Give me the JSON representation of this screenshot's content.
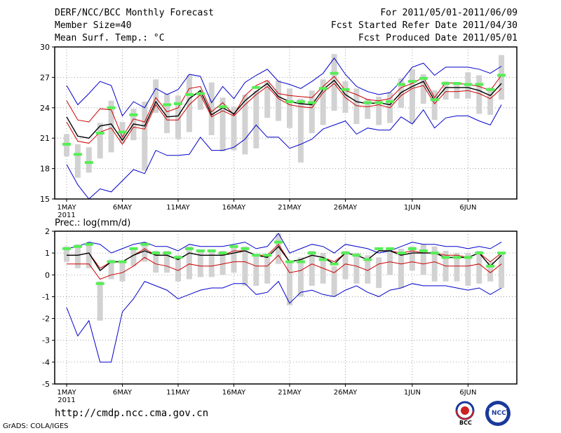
{
  "header": {
    "title": "DERF/NCC/BCC Monthly Forecast",
    "member_size": "Member Size=40",
    "variable": "Mean Surf. Temp.: °C",
    "fcst_period": "For 2011/05/01-2011/06/09",
    "fcst_started": "Fcst Started Refer Date 2011/04/30",
    "fcst_produced": "Fcst Produced Date 2011/05/01"
  },
  "footer": {
    "url": "http://cmdp.ncc.cma.gov.cn",
    "credit": "GrADS: COLA/IGES",
    "logo_bcc": "BCC",
    "logo_ncc": "NCC"
  },
  "colors": {
    "max_line": "#0000cc",
    "min_line": "#0000cc",
    "mean_red": "#cc0000",
    "mean_black": "#000000",
    "box": "#d2d2d2",
    "median_mark": "#55ee55",
    "grid": "#888888"
  },
  "chart_data": [
    {
      "id": "temp",
      "type": "line",
      "title": "Mean Surf. Temp.: °C",
      "ylim": [
        15,
        30
      ],
      "yticks": [
        15,
        18,
        21,
        24,
        27,
        30
      ],
      "x": [
        "May 1",
        "May 2",
        "May 3",
        "May 4",
        "May 5",
        "May 6",
        "May 7",
        "May 8",
        "May 9",
        "May 10",
        "May 11",
        "May 12",
        "May 13",
        "May 14",
        "May 15",
        "May 16",
        "May 17",
        "May 18",
        "May 19",
        "May 20",
        "May 21",
        "May 22",
        "May 23",
        "May 24",
        "May 25",
        "May 26",
        "May 27",
        "May 28",
        "May 29",
        "May 30",
        "May 31",
        "Jun 1",
        "Jun 2",
        "Jun 3",
        "Jun 4",
        "Jun 5",
        "Jun 6",
        "Jun 7",
        "Jun 8",
        "Jun 9"
      ],
      "xtick_labels": [
        {
          "day": 1,
          "label": "1MAY",
          "sub": "2011"
        },
        {
          "day": 6,
          "label": "6MAY"
        },
        {
          "day": 11,
          "label": "11MAY"
        },
        {
          "day": 16,
          "label": "16MAY"
        },
        {
          "day": 21,
          "label": "21MAY"
        },
        {
          "day": 26,
          "label": "26MAY"
        },
        {
          "day": 32,
          "label": "1JUN"
        },
        {
          "day": 37,
          "label": "6JUN"
        }
      ],
      "series": [
        {
          "name": "max",
          "values": [
            26.2,
            24.3,
            25.4,
            26.6,
            26.2,
            23.2,
            24.6,
            24.0,
            25.9,
            25.3,
            25.8,
            27.3,
            27.1,
            24.5,
            26.1,
            24.9,
            26.5,
            27.2,
            27.8,
            26.6,
            26.3,
            25.9,
            26.6,
            27.4,
            28.9,
            27.3,
            26.1,
            25.6,
            25.3,
            25.5,
            26.6,
            28.0,
            28.4,
            27.2,
            28.0,
            28.0,
            28.0,
            27.8,
            27.4,
            28.1
          ]
        },
        {
          "name": "min",
          "values": [
            18.4,
            16.4,
            15.0,
            16.0,
            15.7,
            16.8,
            17.9,
            17.5,
            19.8,
            19.3,
            19.3,
            19.4,
            21.1,
            19.8,
            19.8,
            20.1,
            20.9,
            22.3,
            21.1,
            21.1,
            20.0,
            20.4,
            20.9,
            21.9,
            22.3,
            22.7,
            21.4,
            22.0,
            21.8,
            21.8,
            23.1,
            22.4,
            23.8,
            22.0,
            23.0,
            23.2,
            23.2,
            22.7,
            22.3,
            24.3
          ]
        },
        {
          "name": "mean_upper",
          "values": [
            24.7,
            22.8,
            22.6,
            23.9,
            23.8,
            21.1,
            22.9,
            22.6,
            25.0,
            23.6,
            24.0,
            25.9,
            26.1,
            23.6,
            24.5,
            23.3,
            25.2,
            26.2,
            26.7,
            25.4,
            25.2,
            25.1,
            25.0,
            26.1,
            27.1,
            25.7,
            25.3,
            24.8,
            24.7,
            24.9,
            26.0,
            26.4,
            27.0,
            25.0,
            26.5,
            26.4,
            26.3,
            26.1,
            25.7,
            27.2
          ]
        },
        {
          "name": "mean_lower",
          "values": [
            22.6,
            20.7,
            20.5,
            21.6,
            22.0,
            20.4,
            22.1,
            21.9,
            24.3,
            22.8,
            22.8,
            24.3,
            25.3,
            23.1,
            23.7,
            23.2,
            24.3,
            25.3,
            26.1,
            24.9,
            24.3,
            24.1,
            24.0,
            25.5,
            26.4,
            25.0,
            24.2,
            24.1,
            24.3,
            24.0,
            25.2,
            25.9,
            26.2,
            24.4,
            25.6,
            25.6,
            25.7,
            25.4,
            24.9,
            25.9
          ]
        },
        {
          "name": "mean",
          "values": [
            23.1,
            21.2,
            21.0,
            22.2,
            22.4,
            20.8,
            22.4,
            22.2,
            24.6,
            23.1,
            23.2,
            24.9,
            25.7,
            23.3,
            24.0,
            23.4,
            24.7,
            25.6,
            26.4,
            25.1,
            24.6,
            24.4,
            24.3,
            25.8,
            26.7,
            25.3,
            24.6,
            24.4,
            24.5,
            24.3,
            25.5,
            26.1,
            26.6,
            24.7,
            26.0,
            26.0,
            26.0,
            25.7,
            25.2,
            26.4
          ]
        }
      ],
      "boxes": [
        [
          19.2,
          21.4
        ],
        [
          17.1,
          20.4
        ],
        [
          17.6,
          20.1
        ],
        [
          19.0,
          22.5
        ],
        [
          19.6,
          24.7
        ],
        [
          20.5,
          22.6
        ],
        [
          20.8,
          23.9
        ],
        [
          17.8,
          24.6
        ],
        [
          23.5,
          26.8
        ],
        [
          21.5,
          25.4
        ],
        [
          20.9,
          25.2
        ],
        [
          21.6,
          27.2
        ],
        [
          23.8,
          25.6
        ],
        [
          21.3,
          26.5
        ],
        [
          19.7,
          25.0
        ],
        [
          19.8,
          24.1
        ],
        [
          19.4,
          25.3
        ],
        [
          20.0,
          25.7
        ],
        [
          23.0,
          26.7
        ],
        [
          22.7,
          26.7
        ],
        [
          22.0,
          25.9
        ],
        [
          18.6,
          24.9
        ],
        [
          21.5,
          25.7
        ],
        [
          22.3,
          26.8
        ],
        [
          23.7,
          29.3
        ],
        [
          23.5,
          26.6
        ],
        [
          22.4,
          25.9
        ],
        [
          22.9,
          24.9
        ],
        [
          22.3,
          25.1
        ],
        [
          22.5,
          25.5
        ],
        [
          24.0,
          26.9
        ],
        [
          22.5,
          27.8
        ],
        [
          24.4,
          27.3
        ],
        [
          22.8,
          25.7
        ],
        [
          24.8,
          26.6
        ],
        [
          24.9,
          26.4
        ],
        [
          24.9,
          27.5
        ],
        [
          23.4,
          27.2
        ],
        [
          23.3,
          26.0
        ],
        [
          24.8,
          29.2
        ]
      ],
      "medians": [
        20.4,
        19.4,
        18.6,
        21.5,
        24.0,
        21.6,
        23.3,
        null,
        null,
        24.3,
        24.4,
        25.3,
        25.4,
        null,
        24.1,
        null,
        null,
        26.0,
        null,
        null,
        24.6,
        24.6,
        24.5,
        25.9,
        27.4,
        25.8,
        null,
        24.5,
        24.5,
        24.6,
        26.3,
        26.6,
        26.9,
        24.8,
        26.4,
        26.4,
        26.3,
        26.3,
        25.8,
        27.2
      ]
    },
    {
      "id": "prec",
      "type": "line",
      "title": "Prec.: log(mm/d)",
      "ylim": [
        -5,
        2
      ],
      "yticks": [
        -5,
        -4,
        -3,
        -2,
        -1,
        0,
        1,
        2
      ],
      "x": [
        "May 1",
        "May 2",
        "May 3",
        "May 4",
        "May 5",
        "May 6",
        "May 7",
        "May 8",
        "May 9",
        "May 10",
        "May 11",
        "May 12",
        "May 13",
        "May 14",
        "May 15",
        "May 16",
        "May 17",
        "May 18",
        "May 19",
        "May 20",
        "May 21",
        "May 22",
        "May 23",
        "May 24",
        "May 25",
        "May 26",
        "May 27",
        "May 28",
        "May 29",
        "May 30",
        "May 31",
        "Jun 1",
        "Jun 2",
        "Jun 3",
        "Jun 4",
        "Jun 5",
        "Jun 6",
        "Jun 7",
        "Jun 8",
        "Jun 9"
      ],
      "xtick_labels": [
        {
          "day": 1,
          "label": "1MAY",
          "sub": "2011"
        },
        {
          "day": 6,
          "label": "6MAY"
        },
        {
          "day": 11,
          "label": "11MAY"
        },
        {
          "day": 16,
          "label": "16MAY"
        },
        {
          "day": 21,
          "label": "21MAY"
        },
        {
          "day": 26,
          "label": "26MAY"
        },
        {
          "day": 32,
          "label": "1JUN"
        },
        {
          "day": 37,
          "label": "6JUN"
        }
      ],
      "series": [
        {
          "name": "max",
          "values": [
            1.2,
            1.3,
            1.5,
            1.4,
            1.0,
            1.2,
            1.4,
            1.5,
            1.3,
            1.3,
            1.1,
            1.4,
            1.3,
            1.3,
            1.3,
            1.4,
            1.5,
            1.2,
            1.3,
            1.9,
            1.0,
            1.2,
            1.4,
            1.3,
            1.0,
            1.4,
            1.3,
            1.2,
            1.0,
            1.1,
            1.3,
            1.5,
            1.4,
            1.4,
            1.3,
            1.3,
            1.2,
            1.3,
            1.2,
            1.5
          ]
        },
        {
          "name": "min",
          "values": [
            -1.5,
            -2.8,
            -2.1,
            -4.0,
            -4.0,
            -1.7,
            -1.1,
            -0.3,
            -0.5,
            -0.7,
            -1.1,
            -0.9,
            -0.7,
            -0.6,
            -0.6,
            -0.4,
            -0.4,
            -0.9,
            -0.8,
            -0.3,
            -1.3,
            -0.8,
            -0.7,
            -0.9,
            -1.0,
            -0.7,
            -0.5,
            -0.8,
            -1.0,
            -0.7,
            -0.6,
            -0.4,
            -0.5,
            -0.5,
            -0.5,
            -0.6,
            -0.7,
            -0.6,
            -0.9,
            -0.6
          ]
        },
        {
          "name": "mean_upper",
          "values": [
            0.9,
            0.9,
            1.0,
            0.3,
            0.6,
            0.6,
            0.9,
            1.2,
            0.9,
            0.9,
            0.7,
            1.0,
            0.9,
            0.9,
            0.9,
            1.1,
            1.1,
            0.9,
            0.9,
            1.4,
            0.6,
            0.7,
            0.9,
            0.8,
            0.6,
            1.0,
            0.9,
            0.7,
            1.1,
            1.1,
            1.0,
            1.1,
            1.0,
            1.0,
            0.9,
            0.9,
            0.8,
            1.0,
            0.6,
            1.0
          ]
        },
        {
          "name": "mean_lower",
          "values": [
            0.5,
            0.5,
            0.5,
            -0.2,
            0.0,
            0.1,
            0.4,
            0.8,
            0.5,
            0.4,
            0.2,
            0.5,
            0.4,
            0.4,
            0.5,
            0.6,
            0.6,
            0.4,
            0.4,
            0.9,
            0.1,
            0.2,
            0.5,
            0.3,
            0.1,
            0.5,
            0.4,
            0.2,
            0.5,
            0.6,
            0.5,
            0.6,
            0.5,
            0.6,
            0.4,
            0.4,
            0.4,
            0.5,
            0.1,
            0.5
          ]
        },
        {
          "name": "mean",
          "values": [
            0.9,
            0.9,
            1.0,
            0.2,
            0.6,
            0.6,
            0.9,
            1.1,
            0.9,
            0.9,
            0.7,
            1.0,
            0.9,
            0.9,
            0.9,
            1.0,
            1.1,
            0.9,
            0.8,
            1.3,
            0.6,
            0.7,
            0.9,
            0.8,
            0.5,
            1.0,
            0.9,
            0.7,
            1.1,
            1.1,
            0.9,
            1.0,
            1.0,
            1.0,
            0.8,
            0.8,
            0.8,
            1.0,
            0.4,
            0.9
          ]
        }
      ],
      "boxes": [
        [
          0.6,
          1.3
        ],
        [
          0.3,
          1.4
        ],
        [
          0.3,
          1.5
        ],
        [
          -2.1,
          -0.3
        ],
        [
          -0.2,
          0.7
        ],
        [
          -0.3,
          0.6
        ],
        [
          0.4,
          1.2
        ],
        [
          0.6,
          1.5
        ],
        [
          0.1,
          1.1
        ],
        [
          0.1,
          1.1
        ],
        [
          -0.3,
          0.9
        ],
        [
          -0.2,
          1.3
        ],
        [
          -0.1,
          1.1
        ],
        [
          -0.1,
          1.1
        ],
        [
          0.0,
          1.1
        ],
        [
          0.1,
          1.3
        ],
        [
          -0.5,
          1.3
        ],
        [
          -0.5,
          0.9
        ],
        [
          -0.4,
          0.9
        ],
        [
          0.5,
          1.9
        ],
        [
          -1.4,
          0.6
        ],
        [
          -1.0,
          0.8
        ],
        [
          -0.5,
          1.1
        ],
        [
          -0.4,
          1.0
        ],
        [
          -1.0,
          0.4
        ],
        [
          -0.2,
          1.1
        ],
        [
          -0.4,
          1.0
        ],
        [
          -0.4,
          0.9
        ],
        [
          -0.6,
          0.8
        ],
        [
          0.0,
          1.2
        ],
        [
          -0.6,
          1.2
        ],
        [
          0.2,
          1.3
        ],
        [
          0.0,
          1.4
        ],
        [
          -0.3,
          1.3
        ],
        [
          -0.3,
          1.1
        ],
        [
          -0.3,
          1.0
        ],
        [
          -0.5,
          1.0
        ],
        [
          -0.4,
          1.1
        ],
        [
          -0.3,
          0.6
        ],
        [
          -0.6,
          1.0
        ]
      ],
      "medians": [
        1.2,
        1.3,
        1.4,
        -0.4,
        0.6,
        0.6,
        1.2,
        1.4,
        1.0,
        1.0,
        0.8,
        1.2,
        1.1,
        1.1,
        1.0,
        1.3,
        1.2,
        0.9,
        0.9,
        1.5,
        0.6,
        0.6,
        1.0,
        0.7,
        0.5,
        1.0,
        0.9,
        0.7,
        1.2,
        1.2,
        1.0,
        1.2,
        1.1,
        1.0,
        0.8,
        0.8,
        0.8,
        1.0,
        0.4,
        1.0
      ]
    }
  ]
}
